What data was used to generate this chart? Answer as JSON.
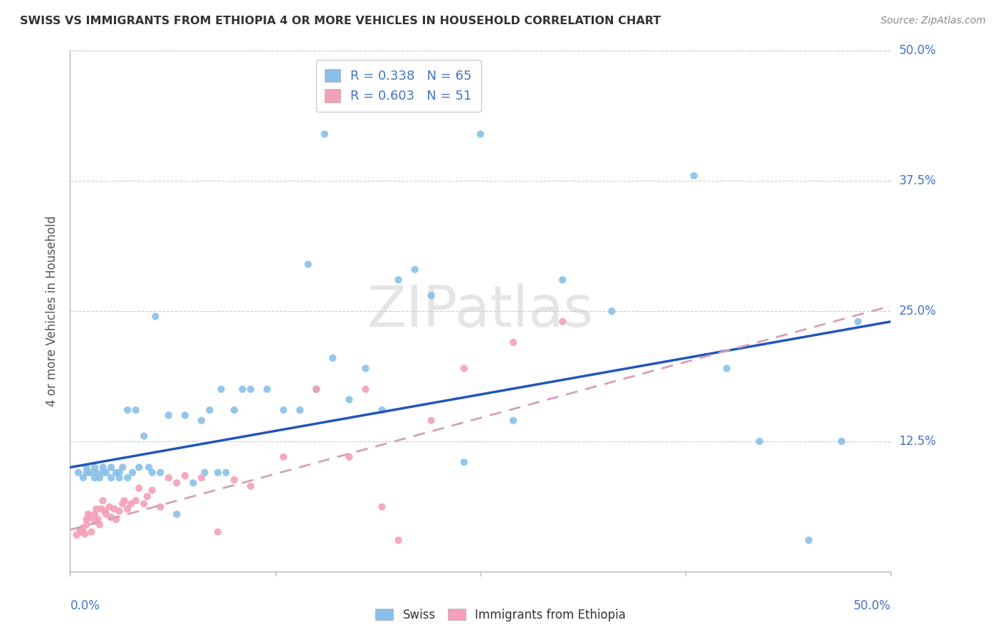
{
  "title": "SWISS VS IMMIGRANTS FROM ETHIOPIA 4 OR MORE VEHICLES IN HOUSEHOLD CORRELATION CHART",
  "source": "Source: ZipAtlas.com",
  "ylabel": "4 or more Vehicles in Household",
  "xlim": [
    0,
    0.5
  ],
  "ylim": [
    0,
    0.5
  ],
  "swiss_scatter_color": "#88c0e8",
  "ethiopia_scatter_color": "#f4a0b8",
  "trendline_swiss_color": "#2255bb",
  "trendline_ethiopia_color": "#d4a0b8",
  "legend_swiss_label": "R = 0.338   N = 65",
  "legend_ethiopia_label": "R = 0.603   N = 51",
  "legend_color": "#4472c4",
  "watermark_text": "ZIPatlas",
  "swiss_x": [
    0.005,
    0.008,
    0.01,
    0.01,
    0.012,
    0.015,
    0.015,
    0.016,
    0.018,
    0.02,
    0.02,
    0.022,
    0.025,
    0.025,
    0.028,
    0.03,
    0.03,
    0.032,
    0.035,
    0.035,
    0.038,
    0.04,
    0.042,
    0.045,
    0.048,
    0.05,
    0.052,
    0.055,
    0.06,
    0.065,
    0.07,
    0.075,
    0.08,
    0.082,
    0.085,
    0.09,
    0.092,
    0.095,
    0.1,
    0.105,
    0.11,
    0.12,
    0.13,
    0.14,
    0.145,
    0.15,
    0.155,
    0.16,
    0.17,
    0.18,
    0.19,
    0.2,
    0.21,
    0.22,
    0.24,
    0.25,
    0.27,
    0.3,
    0.33,
    0.38,
    0.4,
    0.42,
    0.45,
    0.47,
    0.48
  ],
  "swiss_y": [
    0.095,
    0.09,
    0.095,
    0.1,
    0.095,
    0.09,
    0.1,
    0.095,
    0.09,
    0.095,
    0.1,
    0.095,
    0.09,
    0.1,
    0.095,
    0.09,
    0.095,
    0.1,
    0.155,
    0.09,
    0.095,
    0.155,
    0.1,
    0.13,
    0.1,
    0.095,
    0.245,
    0.095,
    0.15,
    0.055,
    0.15,
    0.085,
    0.145,
    0.095,
    0.155,
    0.095,
    0.175,
    0.095,
    0.155,
    0.175,
    0.175,
    0.175,
    0.155,
    0.155,
    0.295,
    0.175,
    0.42,
    0.205,
    0.165,
    0.195,
    0.155,
    0.28,
    0.29,
    0.265,
    0.105,
    0.42,
    0.145,
    0.28,
    0.25,
    0.38,
    0.195,
    0.125,
    0.03,
    0.125,
    0.24
  ],
  "ethiopia_x": [
    0.004,
    0.006,
    0.007,
    0.008,
    0.009,
    0.01,
    0.01,
    0.011,
    0.012,
    0.013,
    0.015,
    0.015,
    0.016,
    0.017,
    0.018,
    0.019,
    0.02,
    0.021,
    0.022,
    0.024,
    0.025,
    0.027,
    0.028,
    0.03,
    0.032,
    0.033,
    0.035,
    0.037,
    0.04,
    0.042,
    0.045,
    0.047,
    0.05,
    0.055,
    0.06,
    0.065,
    0.07,
    0.08,
    0.09,
    0.1,
    0.11,
    0.13,
    0.15,
    0.17,
    0.18,
    0.19,
    0.2,
    0.22,
    0.24,
    0.27,
    0.3
  ],
  "ethiopia_y": [
    0.035,
    0.04,
    0.038,
    0.042,
    0.036,
    0.05,
    0.045,
    0.055,
    0.052,
    0.038,
    0.048,
    0.055,
    0.06,
    0.05,
    0.045,
    0.06,
    0.068,
    0.058,
    0.055,
    0.062,
    0.052,
    0.06,
    0.05,
    0.058,
    0.065,
    0.068,
    0.06,
    0.065,
    0.068,
    0.08,
    0.065,
    0.072,
    0.078,
    0.062,
    0.09,
    0.085,
    0.092,
    0.09,
    0.038,
    0.088,
    0.082,
    0.11,
    0.175,
    0.11,
    0.175,
    0.062,
    0.03,
    0.145,
    0.195,
    0.22,
    0.24
  ],
  "swiss_trend_x": [
    0.0,
    0.5
  ],
  "swiss_trend_y": [
    0.1,
    0.24
  ],
  "ethiopia_trend_x": [
    0.0,
    0.5
  ],
  "ethiopia_trend_y": [
    0.04,
    0.255
  ]
}
